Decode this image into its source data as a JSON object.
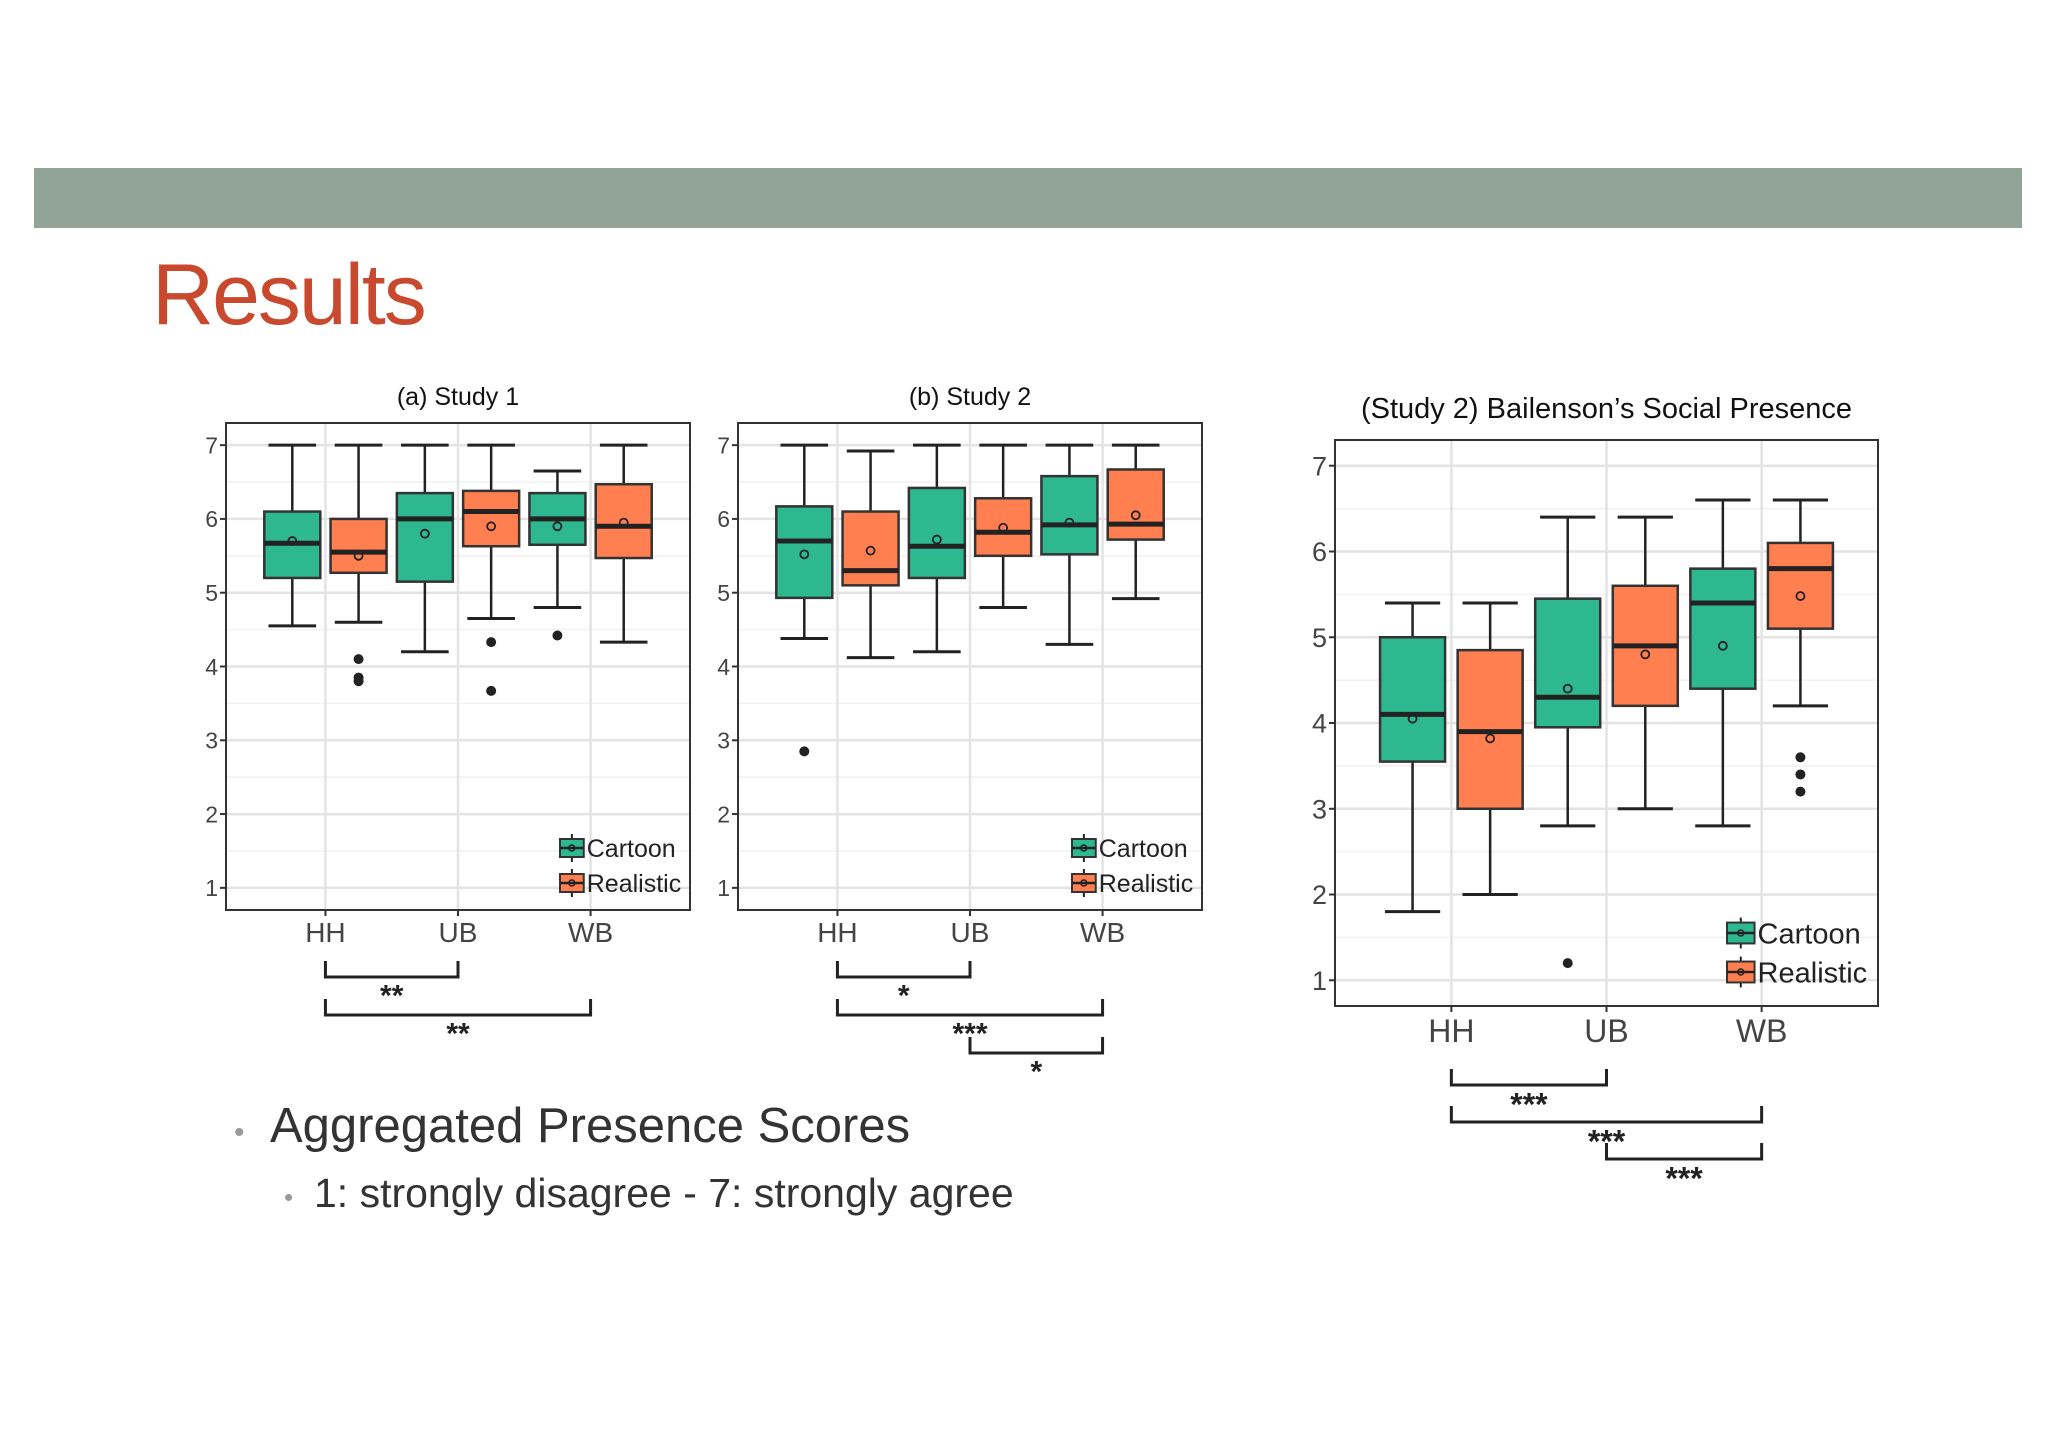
{
  "slide": {
    "title": "Results",
    "band_color": "#91a497",
    "title_color": "#c9492e"
  },
  "bullets": [
    {
      "text": "Aggregated Presence Scores",
      "level": 1
    },
    {
      "text": "1: strongly disagree - 7: strongly agree",
      "level": 2
    }
  ],
  "colors": {
    "cartoon": "#2db890",
    "realistic": "#ff7f50",
    "significance": "#222222"
  },
  "chart_data": [
    {
      "type": "box",
      "title": "(a) Study 1",
      "categories": [
        "HH",
        "UB",
        "WB"
      ],
      "ylim": [
        0.7,
        7.3
      ],
      "yticks": [
        1,
        2,
        3,
        4,
        5,
        6,
        7
      ],
      "grid": true,
      "legend_position": "bottom-right",
      "series": [
        {
          "name": "Cartoon",
          "boxes": [
            {
              "whisker_low": 4.55,
              "q1": 5.2,
              "median": 5.67,
              "q3": 6.1,
              "whisker_high": 7.0,
              "mean": 5.7,
              "outliers": []
            },
            {
              "whisker_low": 4.2,
              "q1": 5.15,
              "median": 6.0,
              "q3": 6.35,
              "whisker_high": 7.0,
              "mean": 5.8,
              "outliers": []
            },
            {
              "whisker_low": 4.8,
              "q1": 5.65,
              "median": 6.0,
              "q3": 6.35,
              "whisker_high": 6.65,
              "mean": 5.9,
              "outliers": [
                4.42
              ]
            }
          ]
        },
        {
          "name": "Realistic",
          "boxes": [
            {
              "whisker_low": 4.6,
              "q1": 5.27,
              "median": 5.55,
              "q3": 6.0,
              "whisker_high": 7.0,
              "mean": 5.5,
              "outliers": [
                4.1,
                3.85,
                3.8
              ]
            },
            {
              "whisker_low": 4.65,
              "q1": 5.63,
              "median": 6.1,
              "q3": 6.38,
              "whisker_high": 7.0,
              "mean": 5.9,
              "outliers": [
                4.33,
                3.67
              ]
            },
            {
              "whisker_low": 4.33,
              "q1": 5.47,
              "median": 5.9,
              "q3": 6.47,
              "whisker_high": 7.0,
              "mean": 5.95,
              "outliers": []
            }
          ]
        }
      ],
      "significance": [
        {
          "from": "HH",
          "to": "UB",
          "label": "**"
        },
        {
          "from": "HH",
          "to": "WB",
          "label": "**"
        }
      ]
    },
    {
      "type": "box",
      "title": "(b) Study 2",
      "categories": [
        "HH",
        "UB",
        "WB"
      ],
      "ylim": [
        0.7,
        7.3
      ],
      "yticks": [
        1,
        2,
        3,
        4,
        5,
        6,
        7
      ],
      "grid": true,
      "legend_position": "bottom-right",
      "series": [
        {
          "name": "Cartoon",
          "boxes": [
            {
              "whisker_low": 4.38,
              "q1": 4.93,
              "median": 5.7,
              "q3": 6.17,
              "whisker_high": 7.0,
              "mean": 5.52,
              "outliers": [
                2.85
              ]
            },
            {
              "whisker_low": 4.2,
              "q1": 5.2,
              "median": 5.63,
              "q3": 6.42,
              "whisker_high": 7.0,
              "mean": 5.72,
              "outliers": []
            },
            {
              "whisker_low": 4.3,
              "q1": 5.52,
              "median": 5.92,
              "q3": 6.58,
              "whisker_high": 7.0,
              "mean": 5.95,
              "outliers": []
            }
          ]
        },
        {
          "name": "Realistic",
          "boxes": [
            {
              "whisker_low": 4.12,
              "q1": 5.1,
              "median": 5.3,
              "q3": 6.1,
              "whisker_high": 6.92,
              "mean": 5.57,
              "outliers": []
            },
            {
              "whisker_low": 4.8,
              "q1": 5.5,
              "median": 5.82,
              "q3": 6.28,
              "whisker_high": 7.0,
              "mean": 5.88,
              "outliers": []
            },
            {
              "whisker_low": 4.92,
              "q1": 5.72,
              "median": 5.93,
              "q3": 6.67,
              "whisker_high": 7.0,
              "mean": 6.05,
              "outliers": []
            }
          ]
        }
      ],
      "significance": [
        {
          "from": "HH",
          "to": "UB",
          "label": "*"
        },
        {
          "from": "HH",
          "to": "WB",
          "label": "***"
        },
        {
          "from": "UB",
          "to": "WB",
          "label": "*"
        }
      ]
    },
    {
      "type": "box",
      "title": "(Study 2) Bailenson’s Social Presence",
      "categories": [
        "HH",
        "UB",
        "WB"
      ],
      "ylim": [
        0.7,
        7.3
      ],
      "yticks": [
        1,
        2,
        3,
        4,
        5,
        6,
        7
      ],
      "grid": true,
      "legend_position": "bottom-right",
      "series": [
        {
          "name": "Cartoon",
          "boxes": [
            {
              "whisker_low": 1.8,
              "q1": 3.55,
              "median": 4.1,
              "q3": 5.0,
              "whisker_high": 5.4,
              "mean": 4.05,
              "outliers": []
            },
            {
              "whisker_low": 2.8,
              "q1": 3.95,
              "median": 4.3,
              "q3": 5.45,
              "whisker_high": 6.4,
              "mean": 4.4,
              "outliers": [
                1.2
              ]
            },
            {
              "whisker_low": 2.8,
              "q1": 4.4,
              "median": 5.4,
              "q3": 5.8,
              "whisker_high": 6.6,
              "mean": 4.9,
              "outliers": []
            }
          ]
        },
        {
          "name": "Realistic",
          "boxes": [
            {
              "whisker_low": 2.0,
              "q1": 3.0,
              "median": 3.9,
              "q3": 4.85,
              "whisker_high": 5.4,
              "mean": 3.82,
              "outliers": []
            },
            {
              "whisker_low": 3.0,
              "q1": 4.2,
              "median": 4.9,
              "q3": 5.6,
              "whisker_high": 6.4,
              "mean": 4.8,
              "outliers": []
            },
            {
              "whisker_low": 4.2,
              "q1": 5.1,
              "median": 5.8,
              "q3": 6.1,
              "whisker_high": 6.6,
              "mean": 5.48,
              "outliers": [
                3.6,
                3.4,
                3.2
              ]
            }
          ]
        }
      ],
      "significance": [
        {
          "from": "HH",
          "to": "UB",
          "label": "***"
        },
        {
          "from": "HH",
          "to": "WB",
          "label": "***"
        },
        {
          "from": "UB",
          "to": "WB",
          "label": "***"
        }
      ]
    }
  ]
}
